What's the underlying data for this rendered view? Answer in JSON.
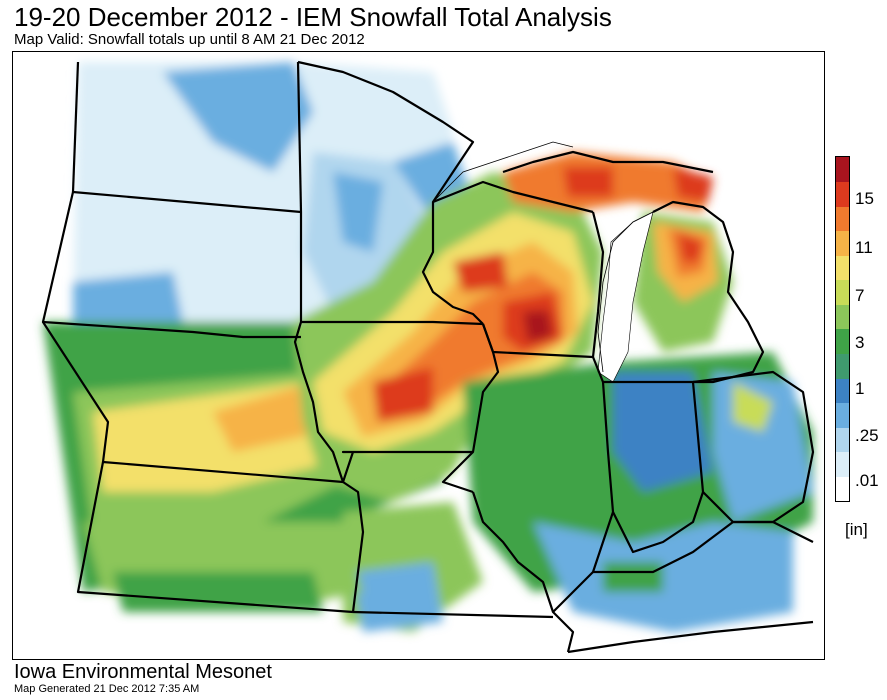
{
  "header": {
    "title": "19-20 December 2012 - IEM Snowfall Total Analysis",
    "subtitle": "Map Valid: Snowfall totals up until 8 AM 21 Dec 2012"
  },
  "legend": {
    "unit": "[in]",
    "tick_labels": [
      "15",
      "11",
      "7",
      "3",
      "1",
      ".25",
      ".01"
    ],
    "colors": [
      "#ffffff",
      "#dceef8",
      "#b0d6ee",
      "#6aaee0",
      "#3c82c4",
      "#3f9a6e",
      "#3fa347",
      "#8cc65a",
      "#c8dc58",
      "#f3e06a",
      "#f6b347",
      "#f07a2e",
      "#dd3a1e",
      "#a8141e"
    ]
  },
  "map": {
    "region": "Upper Midwest / Central Plains",
    "states": [
      "North Dakota",
      "South Dakota",
      "Nebraska",
      "Kansas",
      "Minnesota",
      "Iowa",
      "Missouri",
      "Wisconsin",
      "Illinois",
      "Michigan",
      "Indiana",
      "Ohio",
      "Kentucky"
    ],
    "max_band": "15+ in (NE Wisconsin / Upper Michigan)"
  },
  "footer": {
    "org": "Iowa Environmental Mesonet",
    "generated": "Map Generated 21 Dec 2012 7:35 AM"
  }
}
